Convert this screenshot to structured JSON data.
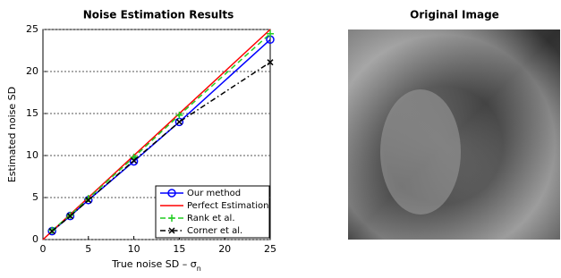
{
  "chart_data": {
    "type": "line",
    "title": "Noise Estimation Results",
    "xlabel": {
      "text": "True noise SD – σ",
      "subscript": "n"
    },
    "ylabel": "Estimated noise SD",
    "xlim": [
      0,
      25
    ],
    "xticks": [
      0,
      5,
      10,
      15,
      20,
      25
    ],
    "ylim": [
      0,
      25
    ],
    "yticks": [
      0,
      5,
      10,
      15,
      20,
      25
    ],
    "grid": "y",
    "legend": "lower-right",
    "series": [
      {
        "name": "Our method",
        "color": "#0000ff",
        "marker": "circle",
        "dash": "solid",
        "x": [
          1,
          3,
          5,
          10,
          15,
          25
        ],
        "values": [
          1.0,
          2.8,
          4.7,
          9.3,
          14.0,
          23.8
        ]
      },
      {
        "name": "Perfect Estimation",
        "color": "#ff0000",
        "marker": "none",
        "dash": "solid",
        "x": [
          0,
          25
        ],
        "values": [
          0,
          25
        ]
      },
      {
        "name": "Rank et al.",
        "color": "#22cc22",
        "marker": "plus",
        "dash": "dashed",
        "x": [
          1,
          3,
          5,
          10,
          15,
          25
        ],
        "values": [
          1.1,
          2.9,
          4.9,
          9.8,
          14.8,
          24.5
        ]
      },
      {
        "name": "Corner et al.",
        "color": "#000000",
        "marker": "cross",
        "dash": "dashdot",
        "x": [
          1,
          3,
          5,
          10,
          15,
          25
        ],
        "values": [
          1.0,
          2.8,
          4.7,
          9.4,
          14.0,
          21.1
        ]
      }
    ]
  },
  "image_panel": {
    "title": "Original Image"
  }
}
